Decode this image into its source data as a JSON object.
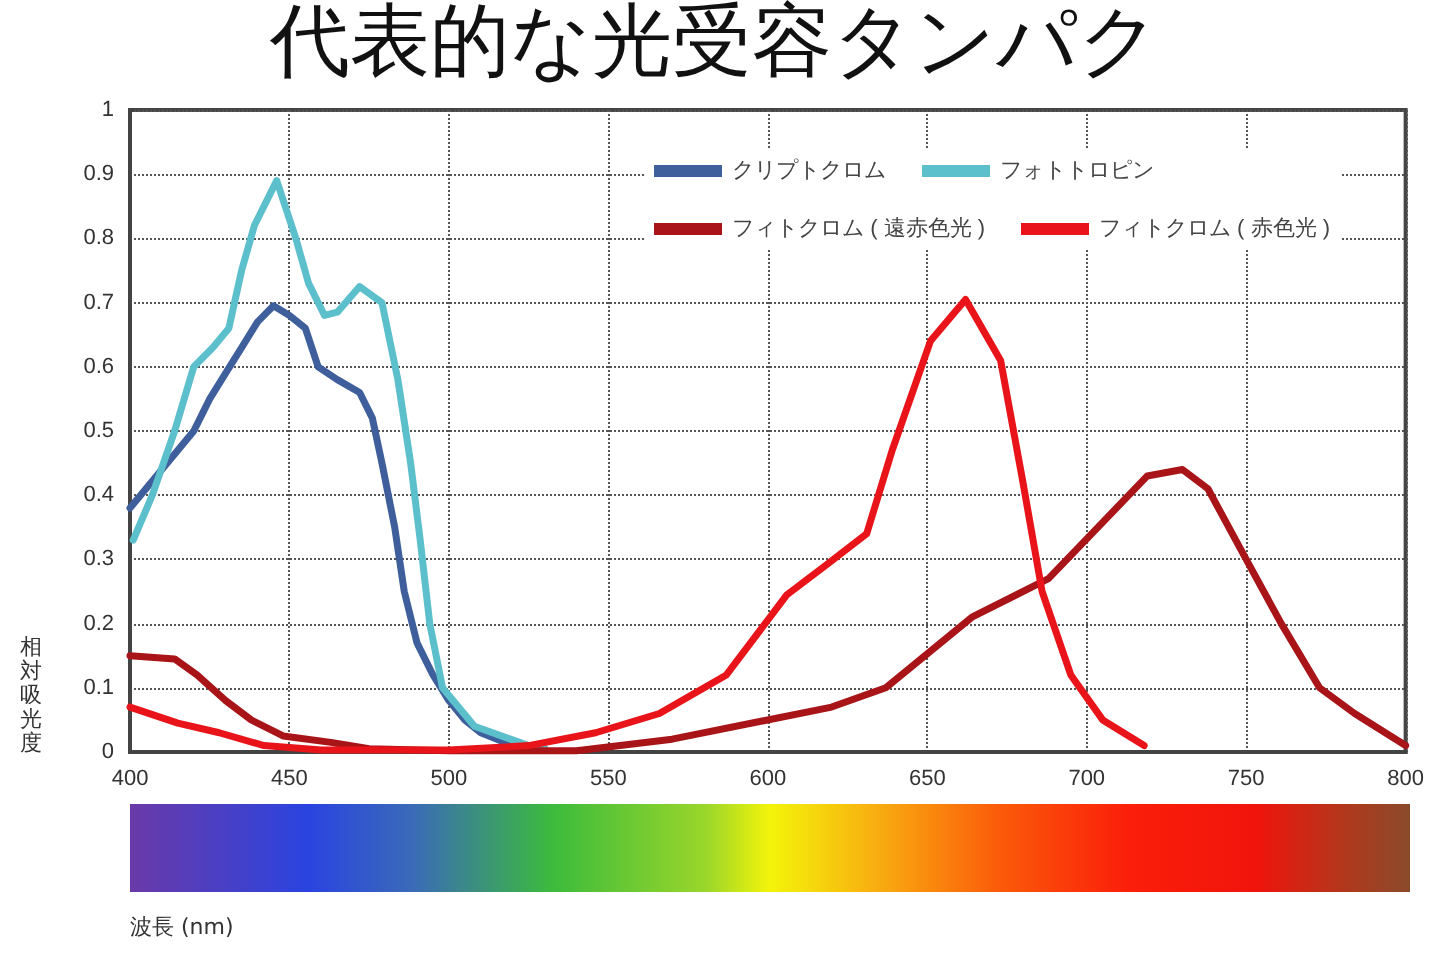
{
  "chart_data": {
    "type": "line",
    "title": "代表的な光受容タンパク",
    "annotations": [
      "波長 (nm)"
    ],
    "ylabel": "相対吸光度",
    "xlim": [
      400,
      800
    ],
    "xticks": [
      400,
      450,
      500,
      550,
      600,
      650,
      700,
      750,
      800
    ],
    "ylim": [
      0,
      1
    ],
    "yticks": [
      0,
      0.1,
      0.2,
      0.3,
      0.4,
      0.5,
      0.6,
      0.7,
      0.8,
      0.9,
      1
    ],
    "grid": true,
    "legend": "top right",
    "marker": "none",
    "line_style": "solid",
    "series": [
      {
        "name": "クリプトクロム",
        "color": "#3e5f9c",
        "x": [
          400,
          405,
          410,
          415,
          420,
          425,
          430,
          435,
          440,
          445,
          450,
          455,
          459,
          465,
          472,
          476,
          479,
          483,
          486,
          490,
          495,
          500,
          505,
          510,
          520,
          530
        ],
        "values": [
          0.38,
          0.41,
          0.44,
          0.47,
          0.5,
          0.55,
          0.59,
          0.63,
          0.67,
          0.695,
          0.68,
          0.66,
          0.6,
          0.58,
          0.56,
          0.52,
          0.45,
          0.35,
          0.25,
          0.17,
          0.12,
          0.08,
          0.05,
          0.03,
          0.01,
          0.005
        ]
      },
      {
        "name": "フォトトロピン",
        "color": "#5cbfcc",
        "x": [
          401,
          407,
          414,
          420,
          426,
          431,
          435,
          439,
          446,
          452,
          456,
          461,
          465,
          472,
          479,
          484,
          488,
          491,
          494,
          498,
          508,
          525,
          530
        ],
        "values": [
          0.33,
          0.4,
          0.5,
          0.6,
          0.63,
          0.66,
          0.75,
          0.82,
          0.89,
          0.8,
          0.73,
          0.68,
          0.685,
          0.725,
          0.7,
          0.58,
          0.45,
          0.33,
          0.2,
          0.1,
          0.04,
          0.01,
          0.005
        ]
      },
      {
        "name": "フィトクロム ( 遠赤色光 )",
        "color": "#a81418",
        "x": [
          400,
          414,
          421,
          430,
          438,
          448,
          463,
          475,
          500,
          540,
          570,
          620,
          637,
          664,
          688,
          719,
          730,
          738,
          750,
          761,
          773,
          784,
          800
        ],
        "values": [
          0.15,
          0.145,
          0.12,
          0.08,
          0.05,
          0.025,
          0.015,
          0.005,
          0.002,
          0.002,
          0.02,
          0.07,
          0.1,
          0.21,
          0.27,
          0.43,
          0.44,
          0.41,
          0.3,
          0.2,
          0.1,
          0.06,
          0.01
        ]
      },
      {
        "name": "フィトクロム ( 赤色光 )",
        "color": "#e8141a",
        "x": [
          400,
          415,
          428,
          442,
          460,
          500,
          525,
          546,
          566,
          587,
          606,
          618,
          631,
          639,
          651,
          662,
          673,
          680,
          686,
          695,
          705,
          718
        ],
        "values": [
          0.07,
          0.045,
          0.03,
          0.01,
          0.003,
          0.003,
          0.01,
          0.03,
          0.06,
          0.12,
          0.245,
          0.29,
          0.34,
          0.47,
          0.64,
          0.705,
          0.61,
          0.42,
          0.25,
          0.12,
          0.05,
          0.01
        ]
      }
    ]
  }
}
